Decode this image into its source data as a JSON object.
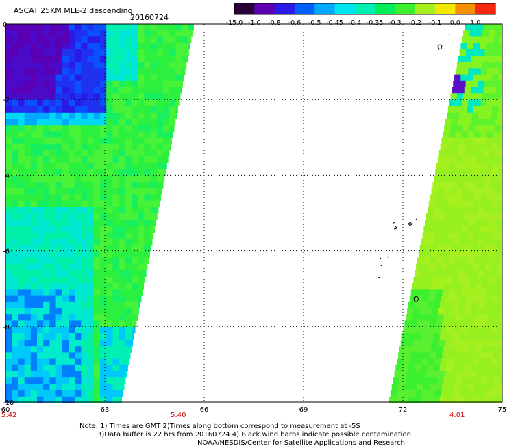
{
  "header": {
    "title": "ASCAT 25KM MLE-2 descending",
    "date": "20160724"
  },
  "colorbar": {
    "labels": [
      "-15.0",
      "-1.0",
      "-0.8",
      "-0.6",
      "-0.5",
      "-0.45",
      "-0.4",
      "-0.35",
      "-0.3",
      "-0.2",
      "-0.1",
      "0.0",
      "1.0"
    ],
    "colors": [
      "#2a0038",
      "#5c00b0",
      "#2a1ae8",
      "#0060ff",
      "#00a8ff",
      "#00e6f0",
      "#00f0b4",
      "#00ef58",
      "#3cf030",
      "#a6f020",
      "#f4e800",
      "#f49000",
      "#f82810"
    ]
  },
  "chart_data": {
    "type": "heatmap",
    "title": "ASCAT 25KM MLE-2 descending",
    "subtitle": "20160724",
    "x_ticks": [
      "60",
      "63",
      "66",
      "69",
      "72",
      "75"
    ],
    "y_ticks": [
      "0",
      "-2",
      "-4",
      "-6",
      "-8",
      "-10"
    ],
    "xlim": [
      60,
      75
    ],
    "ylim": [
      -10,
      0
    ],
    "grid": true,
    "colorbar_labels": [
      "-15.0",
      "-1.0",
      "-0.8",
      "-0.6",
      "-0.5",
      "-0.45",
      "-0.4",
      "-0.35",
      "-0.3",
      "-0.2",
      "-0.1",
      "0.0",
      "1.0"
    ],
    "times": [
      {
        "label": "5:42",
        "x": 60
      },
      {
        "label": "5:40",
        "x": 65
      },
      {
        "label": "4:01",
        "x": 73.7
      }
    ]
  },
  "notes": {
    "line1": "Note: 1) Times are GMT 2)Times along bottom correspond to measurement at -5S",
    "line2": "3)Data buffer is 22 hrs from 20160724 4) Black wind barbs indicate possible contamination",
    "line3": "NOAA/NESDIS/Center for Satellite Applications and Research"
  }
}
